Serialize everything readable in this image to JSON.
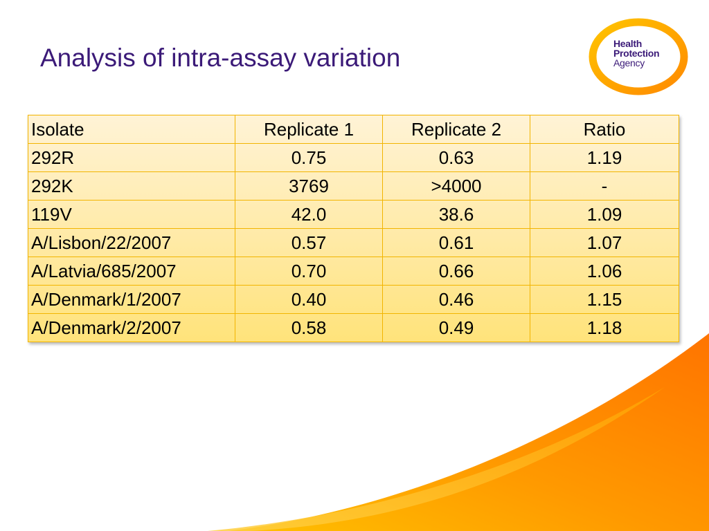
{
  "slide": {
    "title": "Analysis of intra-assay variation"
  },
  "logo": {
    "line1": "Health",
    "line2": "Protection",
    "line3": "Agency"
  },
  "table": {
    "headers": [
      "Isolate",
      "Replicate 1",
      "Replicate 2",
      "Ratio"
    ],
    "rows": [
      [
        "292R",
        "0.75",
        "0.63",
        "1.19"
      ],
      [
        "292K",
        "3769",
        ">4000",
        "-"
      ],
      [
        "119V",
        "42.0",
        "38.6",
        "1.09"
      ],
      [
        "A/Lisbon/22/2007",
        "0.57",
        "0.61",
        "1.07"
      ],
      [
        "A/Latvia/685/2007",
        "0.70",
        "0.66",
        "1.06"
      ],
      [
        "A/Denmark/1/2007",
        "0.40",
        "0.46",
        "1.15"
      ],
      [
        "A/Denmark/2/2007",
        "0.58",
        "0.49",
        "1.18"
      ]
    ]
  },
  "colors": {
    "title": "#3b1a78",
    "table_border": "#f2b400",
    "table_fill_top": "#fff3d6",
    "table_fill_bottom": "#ffe37a",
    "swoosh_light": "#ffb000",
    "swoosh_dark": "#ff7a00"
  }
}
